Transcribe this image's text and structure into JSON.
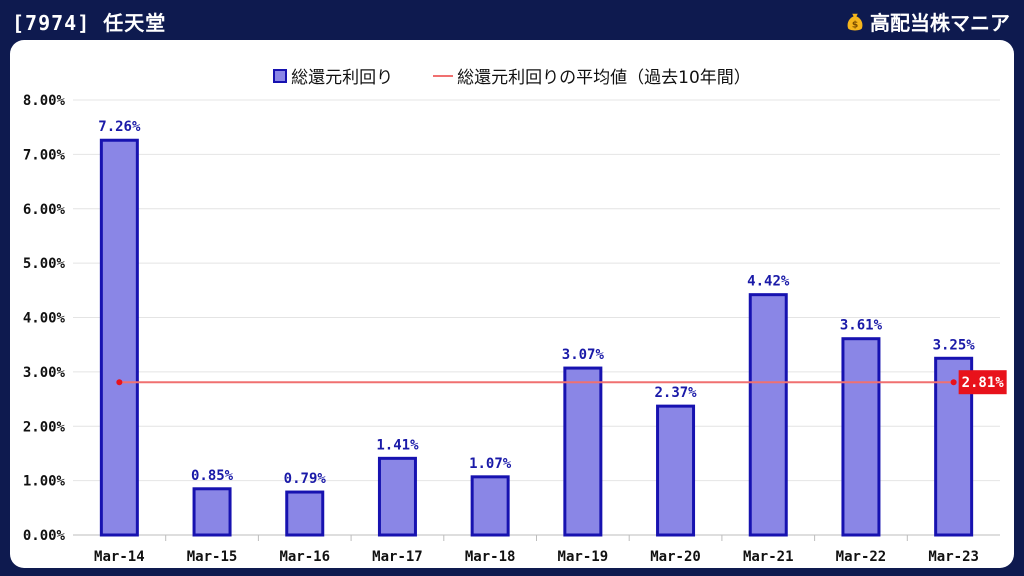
{
  "header": {
    "title": "[7974] 任天堂",
    "brand": "高配当株マニア"
  },
  "colors": {
    "background": "#0e1a4f",
    "bar_fill": "#8a86e6",
    "bar_border": "#1712b0",
    "avg_line": "#f07070",
    "avg_badge": "#e8121b",
    "data_label": "#1a1aa8"
  },
  "icons": {
    "brand": "money-bag-icon"
  },
  "chart_data": {
    "type": "bar",
    "categories": [
      "Mar-14",
      "Mar-15",
      "Mar-16",
      "Mar-17",
      "Mar-18",
      "Mar-19",
      "Mar-20",
      "Mar-21",
      "Mar-22",
      "Mar-23"
    ],
    "series": [
      {
        "name": "総還元利回り",
        "values": [
          7.26,
          0.85,
          0.79,
          1.41,
          1.07,
          3.07,
          2.37,
          4.42,
          3.61,
          3.25
        ],
        "data_labels": [
          "7.26%",
          "0.85%",
          "0.79%",
          "1.41%",
          "1.07%",
          "3.07%",
          "2.37%",
          "4.42%",
          "3.61%",
          "3.25%"
        ]
      },
      {
        "name": "総還元利回りの平均値（過去10年間）",
        "type": "line",
        "value": 2.81,
        "label": "2.81%"
      }
    ],
    "ylim": [
      0,
      8
    ],
    "y_ticks": [
      0,
      1,
      2,
      3,
      4,
      5,
      6,
      7,
      8
    ],
    "y_tick_labels": [
      "0.00%",
      "1.00%",
      "2.00%",
      "3.00%",
      "4.00%",
      "5.00%",
      "6.00%",
      "7.00%",
      "8.00%"
    ],
    "grid": true,
    "legend_position": "top-center"
  }
}
